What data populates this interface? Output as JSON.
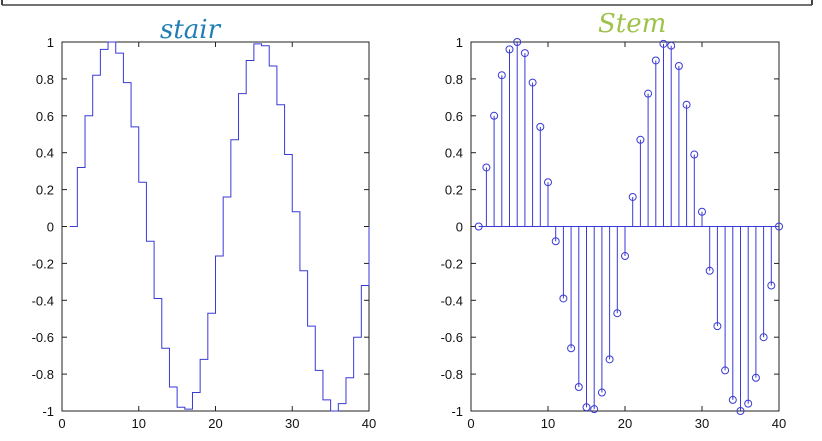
{
  "colors": {
    "line": "#3a3ad6",
    "axis": "#222222",
    "stair_annotation": "#1f7fb5",
    "stem_annotation": "#9fc24a"
  },
  "chart_data": [
    {
      "type": "line",
      "style": "stairs",
      "title": "",
      "xlabel": "",
      "ylabel": "",
      "annotation": "stair",
      "xlim": [
        0,
        40
      ],
      "ylim": [
        -1,
        1
      ],
      "xticks": [
        "0",
        "10",
        "20",
        "30",
        "40"
      ],
      "yticks": [
        "-1",
        "-0.8",
        "-0.6",
        "-0.4",
        "-0.2",
        "0",
        "0.2",
        "0.4",
        "0.6",
        "0.8",
        "1"
      ],
      "grid": false,
      "series": [
        {
          "x": [
            1,
            2,
            3,
            4,
            5,
            6,
            7,
            8,
            9,
            10,
            11,
            12,
            13,
            14,
            15,
            16,
            17,
            18,
            19,
            20,
            21,
            22,
            23,
            24,
            25,
            26,
            27,
            28,
            29,
            30,
            31,
            32,
            33,
            34,
            35,
            36,
            37,
            38,
            39,
            40
          ],
          "values": [
            0,
            0.32,
            0.6,
            0.82,
            0.96,
            1,
            0.94,
            0.78,
            0.54,
            0.24,
            -0.08,
            -0.39,
            -0.66,
            -0.87,
            -0.98,
            -0.99,
            -0.9,
            -0.72,
            -0.47,
            -0.16,
            0.16,
            0.47,
            0.72,
            0.9,
            0.99,
            0.98,
            0.87,
            0.66,
            0.39,
            0.08,
            -0.24,
            -0.54,
            -0.78,
            -0.94,
            -1,
            -0.96,
            -0.82,
            -0.6,
            -0.32,
            0
          ]
        }
      ]
    },
    {
      "type": "scatter",
      "style": "stem",
      "title": "",
      "xlabel": "",
      "ylabel": "",
      "annotation": "Stem",
      "xlim": [
        0,
        40
      ],
      "ylim": [
        -1,
        1
      ],
      "xticks": [
        "0",
        "10",
        "20",
        "30",
        "40"
      ],
      "yticks": [
        "-1",
        "-0.8",
        "-0.6",
        "-0.4",
        "-0.2",
        "0",
        "0.2",
        "0.4",
        "0.6",
        "0.8",
        "1"
      ],
      "grid": false,
      "series": [
        {
          "x": [
            1,
            2,
            3,
            4,
            5,
            6,
            7,
            8,
            9,
            10,
            11,
            12,
            13,
            14,
            15,
            16,
            17,
            18,
            19,
            20,
            21,
            22,
            23,
            24,
            25,
            26,
            27,
            28,
            29,
            30,
            31,
            32,
            33,
            34,
            35,
            36,
            37,
            38,
            39,
            40
          ],
          "values": [
            0,
            0.32,
            0.6,
            0.82,
            0.96,
            1,
            0.94,
            0.78,
            0.54,
            0.24,
            -0.08,
            -0.39,
            -0.66,
            -0.87,
            -0.98,
            -0.99,
            -0.9,
            -0.72,
            -0.47,
            -0.16,
            0.16,
            0.47,
            0.72,
            0.9,
            0.99,
            0.98,
            0.87,
            0.66,
            0.39,
            0.08,
            -0.24,
            -0.54,
            -0.78,
            -0.94,
            -1,
            -0.96,
            -0.82,
            -0.6,
            -0.32,
            0
          ]
        }
      ]
    }
  ]
}
